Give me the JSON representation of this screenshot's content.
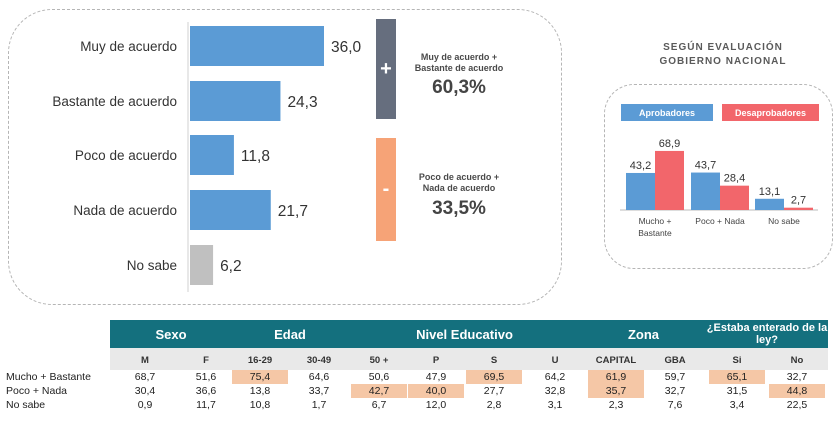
{
  "chart_data": [
    {
      "type": "bar",
      "orientation": "horizontal",
      "categories": [
        "Muy de acuerdo",
        "Bastante de acuerdo",
        "Poco de acuerdo",
        "Nada de acuerdo",
        "No sabe"
      ],
      "values": [
        36.0,
        24.3,
        11.8,
        21.7,
        6.2
      ],
      "value_labels": [
        "36,0",
        "24,3",
        "11,8",
        "21,7",
        "6,2"
      ],
      "colors": [
        "#5b9bd5",
        "#5b9bd5",
        "#5b9bd5",
        "#5b9bd5",
        "#c0c0c0"
      ],
      "xlim": [
        0,
        36
      ]
    },
    {
      "type": "bar",
      "title": "SEGÚN EVALUACIÓN GOBIERNO NACIONAL",
      "categories": [
        "Mucho + Bastante",
        "Poco + Nada",
        "No sabe"
      ],
      "series": [
        {
          "name": "Aprobadores",
          "values": [
            43.2,
            43.7,
            13.1
          ],
          "labels": [
            "43,2",
            "43,7",
            "13,1"
          ],
          "color": "#5b9bd5"
        },
        {
          "name": "Desaprobadores",
          "values": [
            68.9,
            28.4,
            2.7
          ],
          "labels": [
            "68,9",
            "28,4",
            "2,7"
          ],
          "color": "#f2666b"
        }
      ],
      "legend": "top",
      "ylim": [
        0,
        70
      ]
    }
  ],
  "summary": {
    "plus_symbol": "+",
    "plus_label_1": "Muy de acuerdo +",
    "plus_label_2": "Bastante de acuerdo",
    "plus_value": "60,3%",
    "minus_symbol": "-",
    "minus_label_1": "Poco de acuerdo +",
    "minus_label_2": "Nada de acuerdo",
    "minus_value": "33,5%"
  },
  "gov": {
    "title_line1": "SEGÚN EVALUACIÓN",
    "title_line2": "GOBIERNO NACIONAL",
    "legend_approve": "Aprobadores",
    "legend_disapprove": "Desaprobadores",
    "cat_labels": [
      [
        "Mucho +",
        "Bastante"
      ],
      [
        "Poco + Nada"
      ],
      [
        "No sabe"
      ]
    ]
  },
  "table": {
    "groups": [
      "Sexo",
      "Edad",
      "Nivel Educativo",
      "Zona",
      "¿Estaba enterado de la ley?"
    ],
    "columns": [
      "M",
      "F",
      "16-29",
      "30-49",
      "50 +",
      "P",
      "S",
      "U",
      "CAPITAL",
      "GBA",
      "Si",
      "No"
    ],
    "rows": [
      {
        "label": "Mucho + Bastante",
        "values": [
          "68,7",
          "51,6",
          "75,4",
          "64,6",
          "50,6",
          "47,9",
          "69,5",
          "64,2",
          "61,9",
          "59,7",
          "65,1",
          "32,7"
        ],
        "highlight": [
          false,
          false,
          true,
          false,
          false,
          false,
          true,
          false,
          true,
          false,
          true,
          false
        ]
      },
      {
        "label": "Poco + Nada",
        "values": [
          "30,4",
          "36,6",
          "13,8",
          "33,7",
          "42,7",
          "40,0",
          "27,7",
          "32,8",
          "35,7",
          "32,7",
          "31,5",
          "44,8"
        ],
        "highlight": [
          false,
          false,
          false,
          false,
          true,
          true,
          false,
          false,
          true,
          false,
          false,
          true
        ]
      },
      {
        "label": "No sabe",
        "values": [
          "0,9",
          "11,7",
          "10,8",
          "1,7",
          "6,7",
          "12,0",
          "2,8",
          "3,1",
          "2,3",
          "7,6",
          "3,4",
          "22,5"
        ],
        "highlight": [
          false,
          false,
          false,
          false,
          false,
          false,
          false,
          false,
          false,
          false,
          false,
          false
        ]
      }
    ],
    "highlight_color": "#f5c7a6"
  }
}
